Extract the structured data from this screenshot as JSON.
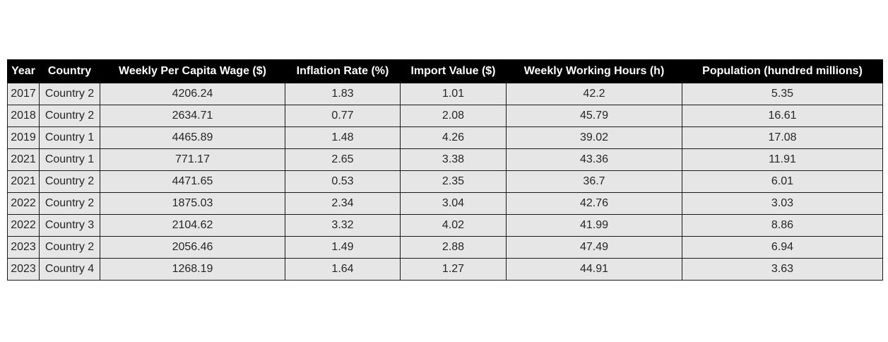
{
  "colors": {
    "header_background": "#000000",
    "header_text": "#ffffff",
    "cell_background": "#e6e6e6",
    "cell_text": "#262626",
    "border": "#1a1a1a"
  },
  "chart_data": {
    "type": "table",
    "columns": [
      "Year",
      "Country",
      "Weekly Per Capita Wage ($)",
      "Inflation Rate (%)",
      "Import Value ($)",
      "Weekly Working Hours (h)",
      "Population (hundred millions)"
    ],
    "rows": [
      [
        "2017",
        "Country 2",
        "4206.24",
        "1.83",
        "1.01",
        "42.2",
        "5.35"
      ],
      [
        "2018",
        "Country 2",
        "2634.71",
        "0.77",
        "2.08",
        "45.79",
        "16.61"
      ],
      [
        "2019",
        "Country 1",
        "4465.89",
        "1.48",
        "4.26",
        "39.02",
        "17.08"
      ],
      [
        "2021",
        "Country 1",
        "771.17",
        "2.65",
        "3.38",
        "43.36",
        "11.91"
      ],
      [
        "2021",
        "Country 2",
        "4471.65",
        "0.53",
        "2.35",
        "36.7",
        "6.01"
      ],
      [
        "2022",
        "Country 2",
        "1875.03",
        "2.34",
        "3.04",
        "42.76",
        "3.03"
      ],
      [
        "2022",
        "Country 3",
        "2104.62",
        "3.32",
        "4.02",
        "41.99",
        "8.86"
      ],
      [
        "2023",
        "Country 2",
        "2056.46",
        "1.49",
        "2.88",
        "47.49",
        "6.94"
      ],
      [
        "2023",
        "Country 4",
        "1268.19",
        "1.64",
        "1.27",
        "44.91",
        "3.63"
      ]
    ]
  }
}
